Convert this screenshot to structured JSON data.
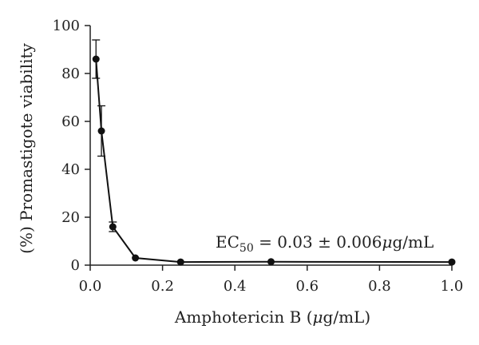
{
  "chart_data": {
    "type": "line",
    "title": "",
    "xlabel_parts": [
      "Amphotericin B (",
      "μ",
      "g/mL)"
    ],
    "ylabel": "(%) Promastigote viability",
    "xlim": [
      0.0,
      1.0
    ],
    "ylim": [
      0,
      100
    ],
    "x_ticks": [
      "0.0",
      "0.2",
      "0.4",
      "0.6",
      "0.8",
      "1.0"
    ],
    "y_ticks": [
      "0",
      "20",
      "40",
      "60",
      "80",
      "100"
    ],
    "grid": false,
    "series": [
      {
        "x": [
          0.016,
          0.031,
          0.0625,
          0.125,
          0.25,
          0.5,
          1.0
        ],
        "y": [
          86,
          56,
          16,
          3,
          1.3,
          1.4,
          1.3
        ],
        "error": [
          8,
          10.5,
          2,
          0,
          0,
          0,
          0
        ]
      }
    ],
    "annotation": {
      "ec_main": "EC",
      "ec_sub": "50",
      "ec_value": " = 0.03 ± 0.006",
      "ec_mu": "μ",
      "ec_unit": "g/mL"
    }
  }
}
